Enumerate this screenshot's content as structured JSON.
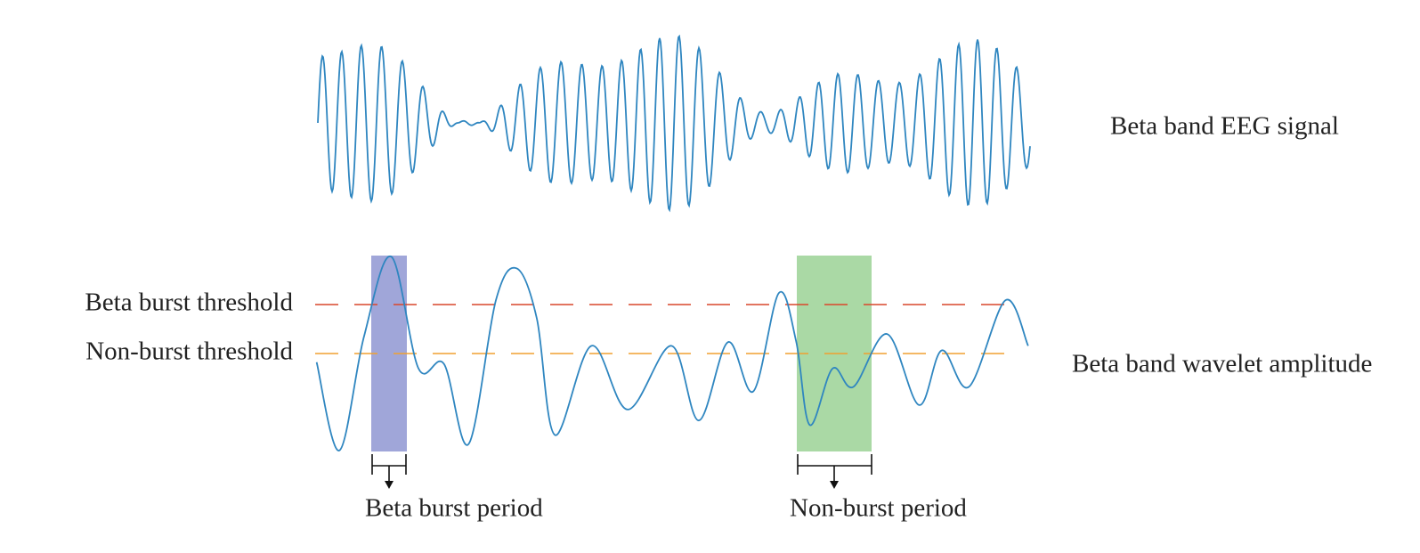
{
  "labels": {
    "eeg_signal": "Beta band EEG signal",
    "burst_threshold": "Beta burst threshold",
    "non_burst_threshold": "Non-burst threshold",
    "wavelet_amplitude": "Beta band wavelet amplitude",
    "burst_period": "Beta burst period",
    "non_burst_period": "Non-burst period"
  }
}
